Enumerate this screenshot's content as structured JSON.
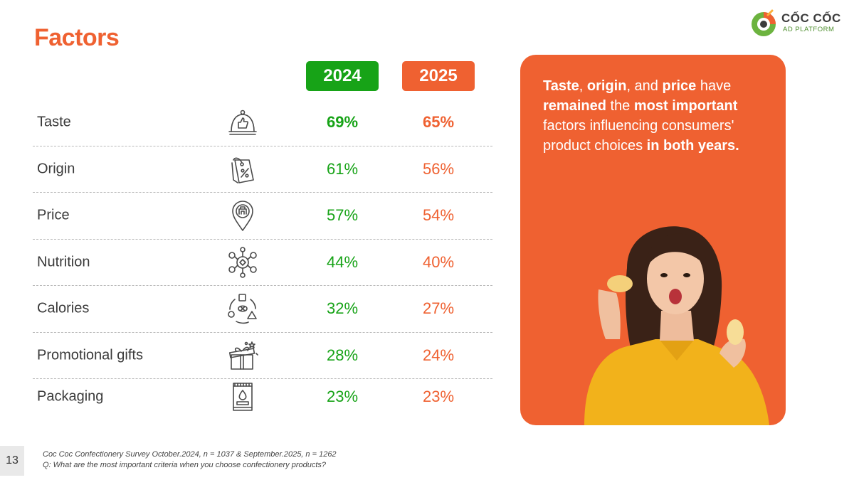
{
  "slide": {
    "title": "Factors",
    "page_number": "13"
  },
  "logo": {
    "brand": "CỐC CỐC",
    "subtitle": "AD PLATFORM"
  },
  "headline": {
    "segments": [
      {
        "text": "Taste",
        "bold": true
      },
      {
        "text": ", ",
        "bold": false
      },
      {
        "text": "origin",
        "bold": true
      },
      {
        "text": ", and ",
        "bold": false
      },
      {
        "text": "price",
        "bold": true
      },
      {
        "text": " have ",
        "bold": false
      },
      {
        "text": "remained",
        "bold": true
      },
      {
        "text": " the ",
        "bold": false
      },
      {
        "text": "most important",
        "bold": true
      },
      {
        "text": " factors influencing consumers' product choices ",
        "bold": false
      },
      {
        "text": "in both years.",
        "bold": true
      }
    ]
  },
  "footnote": {
    "line1": "Coc Coc Confectionery Survey October.2024, n = 1037 & September.2025, n = 1262",
    "line2": "Q: What are the most important criteria when you choose confectionery products?"
  },
  "colors": {
    "accent_orange": "#ef6131",
    "accent_green": "#17a317"
  },
  "chart_data": {
    "type": "table",
    "series": [
      {
        "name": "2024",
        "values": [
          69,
          61,
          57,
          44,
          32,
          28,
          23
        ],
        "labels": [
          "69%",
          "61%",
          "57%",
          "44%",
          "32%",
          "28%",
          "23%"
        ]
      },
      {
        "name": "2025",
        "values": [
          65,
          56,
          54,
          40,
          27,
          24,
          23
        ],
        "labels": [
          "65%",
          "56%",
          "54%",
          "40%",
          "27%",
          "24%",
          "23%"
        ]
      }
    ],
    "categories": [
      "Taste",
      "Origin",
      "Price",
      "Nutrition",
      "Calories",
      "Promotional gifts",
      "Packaging"
    ],
    "icons": [
      "cloche-thumbs-up-icon",
      "price-tag-percent-icon",
      "location-pin-store-icon",
      "nutrition-molecule-icon",
      "calories-cycle-icon",
      "gift-box-icon",
      "snack-package-icon"
    ],
    "bold_rows": [
      0
    ]
  }
}
